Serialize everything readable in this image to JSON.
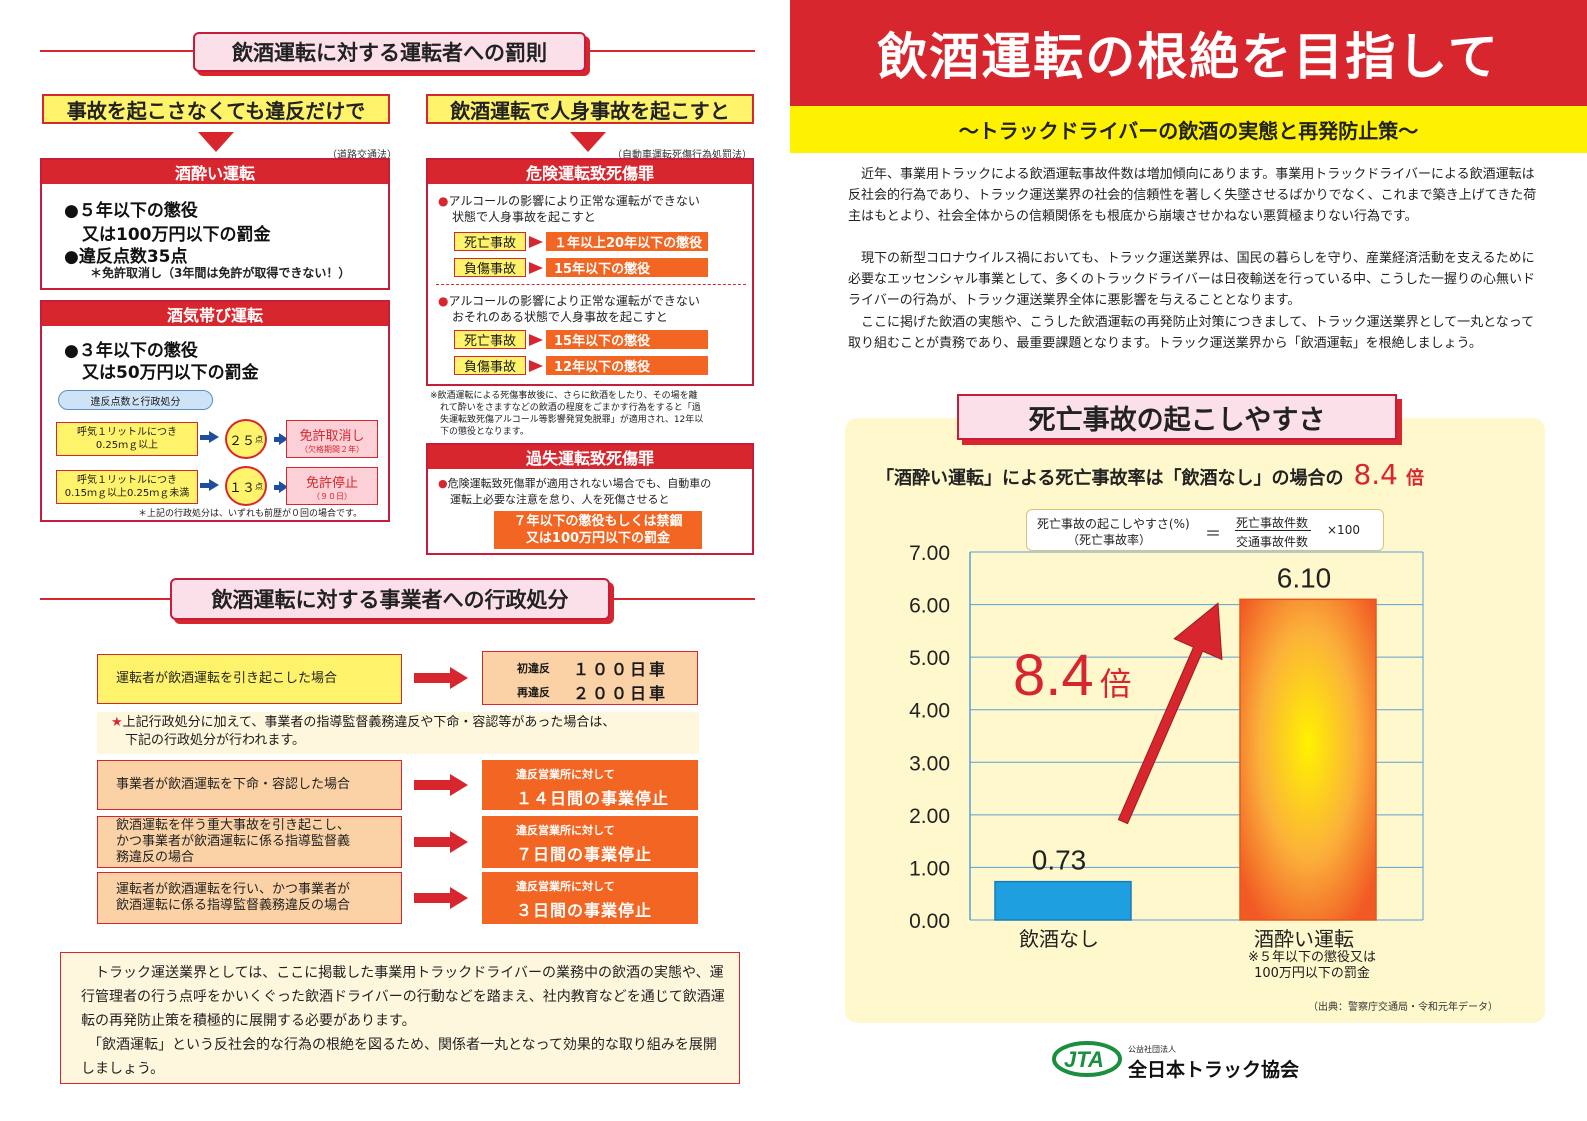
{
  "penalty_driver": {
    "heading": "飲酒運転に対する運転者への罰則",
    "col1_head": "事故を起こさなくても違反だけで",
    "col1_law": "（道路交通法）",
    "drunk": {
      "title": "酒酔い運転",
      "line1": "●５年以下の懲役",
      "line2": "又は100万円以下の罰金",
      "line3": "●違反点数35点",
      "line4": "＊免許取消し（3年間は免許が取得できない！）"
    },
    "dui": {
      "title": "酒気帯び運転",
      "line1": "●３年以下の懲役",
      "line2": "又は50万円以下の罰金",
      "pill": "違反点数と行政処分",
      "row1_cond": "呼気１リットルにつき\n0.25ｍｇ以上",
      "row1_pts": "２５",
      "row1_unit": "点",
      "row1_result": "免許取消し",
      "row1_sub": "（欠格期間２年）",
      "row2_cond": "呼気１リットルにつき\n0.15ｍｇ以上0.25ｍｇ未満",
      "row2_pts": "１３",
      "row2_unit": "点",
      "row2_result": "免許停止",
      "row2_sub": "（９０日）",
      "note": "＊上記の行政処分は、いずれも前歴が０回の場合です。"
    },
    "col2_head": "飲酒運転で人身事故を起こすと",
    "col2_law": "（自動車運転死傷行為処罰法）",
    "danger": {
      "title": "危険運転致死傷罪",
      "cond1a": "アルコールの影響により正常な運転ができない",
      "cond1b": "状態で人身事故を起こすと",
      "death_label": "死亡事故",
      "death1": "１年以上20年以下の懲役",
      "injury_label": "負傷事故",
      "injury1": "15年以下の懲役",
      "cond2a": "アルコールの影響により正常な運転ができない",
      "cond2b": "おそれのある状態で人身事故を起こすと",
      "death2": "15年以下の懲役",
      "injury2": "12年以下の懲役",
      "note1": "※飲酒運転による死傷事故後に、さらに飲酒をしたり、その場を離",
      "note2": "れて酔いをさますなどの飲酒の程度をごまかす行為をすると「過",
      "note3": "失運転致死傷アルコール等影響発覚免脱罪」が適用され、12年以",
      "note4": "下の懲役となります。"
    },
    "negligent": {
      "title": "過失運転致死傷罪",
      "cond_a": "危険運転致死傷罪が適用されない場合でも、自動車の",
      "cond_b": "運転上必要な注意を怠り、人を死傷させると",
      "result1": "７年以下の懲役もしくは禁錮",
      "result2": "又は100万円以下の罰金"
    }
  },
  "admin": {
    "heading": "飲酒運転に対する事業者への行政処分",
    "row1_cond": "運転者が飲酒運転を引き起こした場合",
    "row1_first_label": "初違反",
    "row1_first_val": "１００日車",
    "row1_repeat_label": "再違反",
    "row1_repeat_val": "２００日車",
    "note_star": "★",
    "note1": "上記行政処分に加えて、事業者の指導監督義務違反や下命・容認等があった場合は、",
    "note2": "下記の行政処分が行われます。",
    "rows": [
      {
        "cond": "事業者が飲酒運転を下命・容認した場合",
        "top": "違反営業所に対して",
        "bottom": "１４日間の事業停止"
      },
      {
        "cond": "飲酒運転を伴う重大事故を引き起こし、\nかつ事業者が飲酒運転に係る指導監督義\n務違反の場合",
        "top": "違反営業所に対して",
        "bottom": "７日間の事業停止"
      },
      {
        "cond": "運転者が飲酒運転を行い、かつ事業者が\n飲酒運転に係る指導監督義務違反の場合",
        "top": "違反営業所に対して",
        "bottom": "３日間の事業停止"
      }
    ],
    "closing": "　トラック運送業界としては、ここに掲載した事業用トラックドライバーの業務中の飲酒の実態や、運行管理者の行う点呼をかいくぐった飲酒ドライバーの行動などを踏まえ、社内教育などを通じて飲酒運転の再発防止策を積極的に展開する必要があります。\n　「飲酒運転」という反社会的な行為の根絶を図るため、関係者一丸となって効果的な取り組みを展開しましょう。"
  },
  "right": {
    "title": "飲酒運転の根絶を目指して",
    "subtitle": "〜トラックドライバーの飲酒の実態と再発防止策〜",
    "p1": "　近年、事業用トラックによる飲酒運転事故件数は増加傾向にあります。事業用トラックドライバーによる飲酒運転は反社会的行為であり、トラック運送業界の社会的信頼性を著しく失墜させるばかりでなく、これまで築き上げてきた荷主はもとより、社会全体からの信頼関係をも根底から崩壊させかねない悪質極まりない行為です。",
    "p2": "　現下の新型コロナウイルス禍においても、トラック運送業界は、国民の暮らしを守り、産業経済活動を支えるために必要なエッセンシャル事業として、多くのトラックドライバーは日夜輸送を行っている中、こうした一握りの心無いドライバーの行為が、トラック運送業界全体に悪影響を与えることとなります。",
    "p3": "　ここに掲げた飲酒の実態や、こうした飲酒運転の再発防止対策につきまして、トラック運送業界として一丸となって取り組むことが責務であり、最重要課題となります。トラック運送業界から「飲酒運転」を根絶しましょう。",
    "chart_heading": "死亡事故の起こしやすさ",
    "ratio_text": "「酒酔い運転」による死亡事故率は「飲酒なし」の場合の",
    "ratio_num": "8.4",
    "ratio_unit": "倍",
    "formula_left1": "死亡事故の起こしやすさ(%)",
    "formula_left2": "（死亡事故率）",
    "formula_eq": "＝",
    "formula_num": "死亡事故件数",
    "formula_den": "交通事故件数",
    "formula_mul": "×100",
    "big_ratio": "8.4",
    "big_ratio_unit": "倍",
    "bar2_note1": "※５年以下の懲役又は",
    "bar2_note2": "100万円以下の罰金",
    "source": "（出典：警察庁交通局・令和元年データ）",
    "org_small": "公益社団法人",
    "org_name": "全日本トラック協会",
    "logo_text": "JTA"
  },
  "chart_data": {
    "type": "bar",
    "categories": [
      "飲酒なし",
      "酒酔い運転"
    ],
    "values": [
      0.73,
      6.1
    ],
    "value_labels": [
      "0.73",
      "6.10"
    ],
    "ylim": [
      0,
      7
    ],
    "yticks": [
      "0.00",
      "1.00",
      "2.00",
      "3.00",
      "4.00",
      "5.00",
      "6.00",
      "7.00"
    ],
    "colors": [
      "#1ea0e0",
      "#f7941d"
    ],
    "grid": true
  }
}
